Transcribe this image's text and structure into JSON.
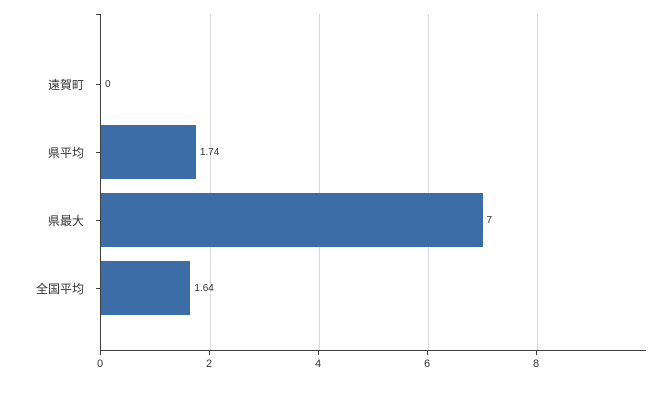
{
  "chart_data": {
    "type": "bar",
    "orientation": "horizontal",
    "title": "",
    "xlabel": "",
    "ylabel": "",
    "categories": [
      "遠賀町",
      "県平均",
      "県最大",
      "全国平均"
    ],
    "values": [
      0,
      1.74,
      7,
      1.64
    ],
    "value_labels": [
      "0",
      "1.74",
      "7",
      "1.64"
    ],
    "x_ticks": [
      0,
      2,
      4,
      6,
      8
    ],
    "x_tick_labels": [
      "0",
      "2",
      "4",
      "6",
      "8"
    ],
    "xlim": [
      0,
      10
    ],
    "grid": true,
    "legend": false,
    "bar_color": "#3c6da6",
    "grid_color": "#d9d9d9",
    "axis_color": "#404040",
    "text_color": "#333333",
    "background_color": "#ffffff"
  }
}
